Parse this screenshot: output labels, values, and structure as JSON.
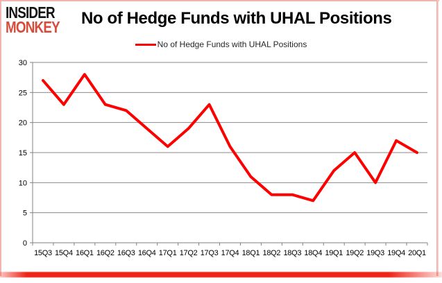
{
  "logo": {
    "line1": "INSIDER",
    "line2": "MONKEY"
  },
  "header": {
    "title": "No of Hedge Funds with UHAL Positions"
  },
  "legend": {
    "label": "No of Hedge Funds with UHAL Positions"
  },
  "colors": {
    "series_line": "#fe0000",
    "grid": "#898989",
    "axis": "#808080",
    "logo_black": "#141414",
    "logo_red": "#d84c3b",
    "frame_pink": "#f2b4ae",
    "bottom_bar_red": "#ee190c",
    "text": "#000000"
  },
  "chart_data": {
    "type": "line",
    "title": "No of Hedge Funds with UHAL Positions",
    "categories": [
      "15Q3",
      "15Q4",
      "16Q1",
      "16Q2",
      "16Q3",
      "16Q4",
      "17Q1",
      "17Q2",
      "17Q3",
      "17Q4",
      "18Q1",
      "18Q2",
      "18Q3",
      "18Q4",
      "19Q1",
      "19Q2",
      "19Q3",
      "19Q4",
      "20Q1"
    ],
    "series": [
      {
        "name": "No of Hedge Funds with UHAL Positions",
        "color": "#fe0000",
        "values": [
          27,
          23,
          28,
          23,
          22,
          19,
          16,
          19,
          23,
          16,
          11,
          8,
          8,
          7,
          12,
          15,
          10,
          17,
          15
        ]
      }
    ],
    "xlabel": "",
    "ylabel": "",
    "ylim": [
      0,
      30
    ],
    "yticks": [
      0,
      5,
      10,
      15,
      20,
      25,
      30
    ],
    "grid": true,
    "legend_position": "top"
  }
}
